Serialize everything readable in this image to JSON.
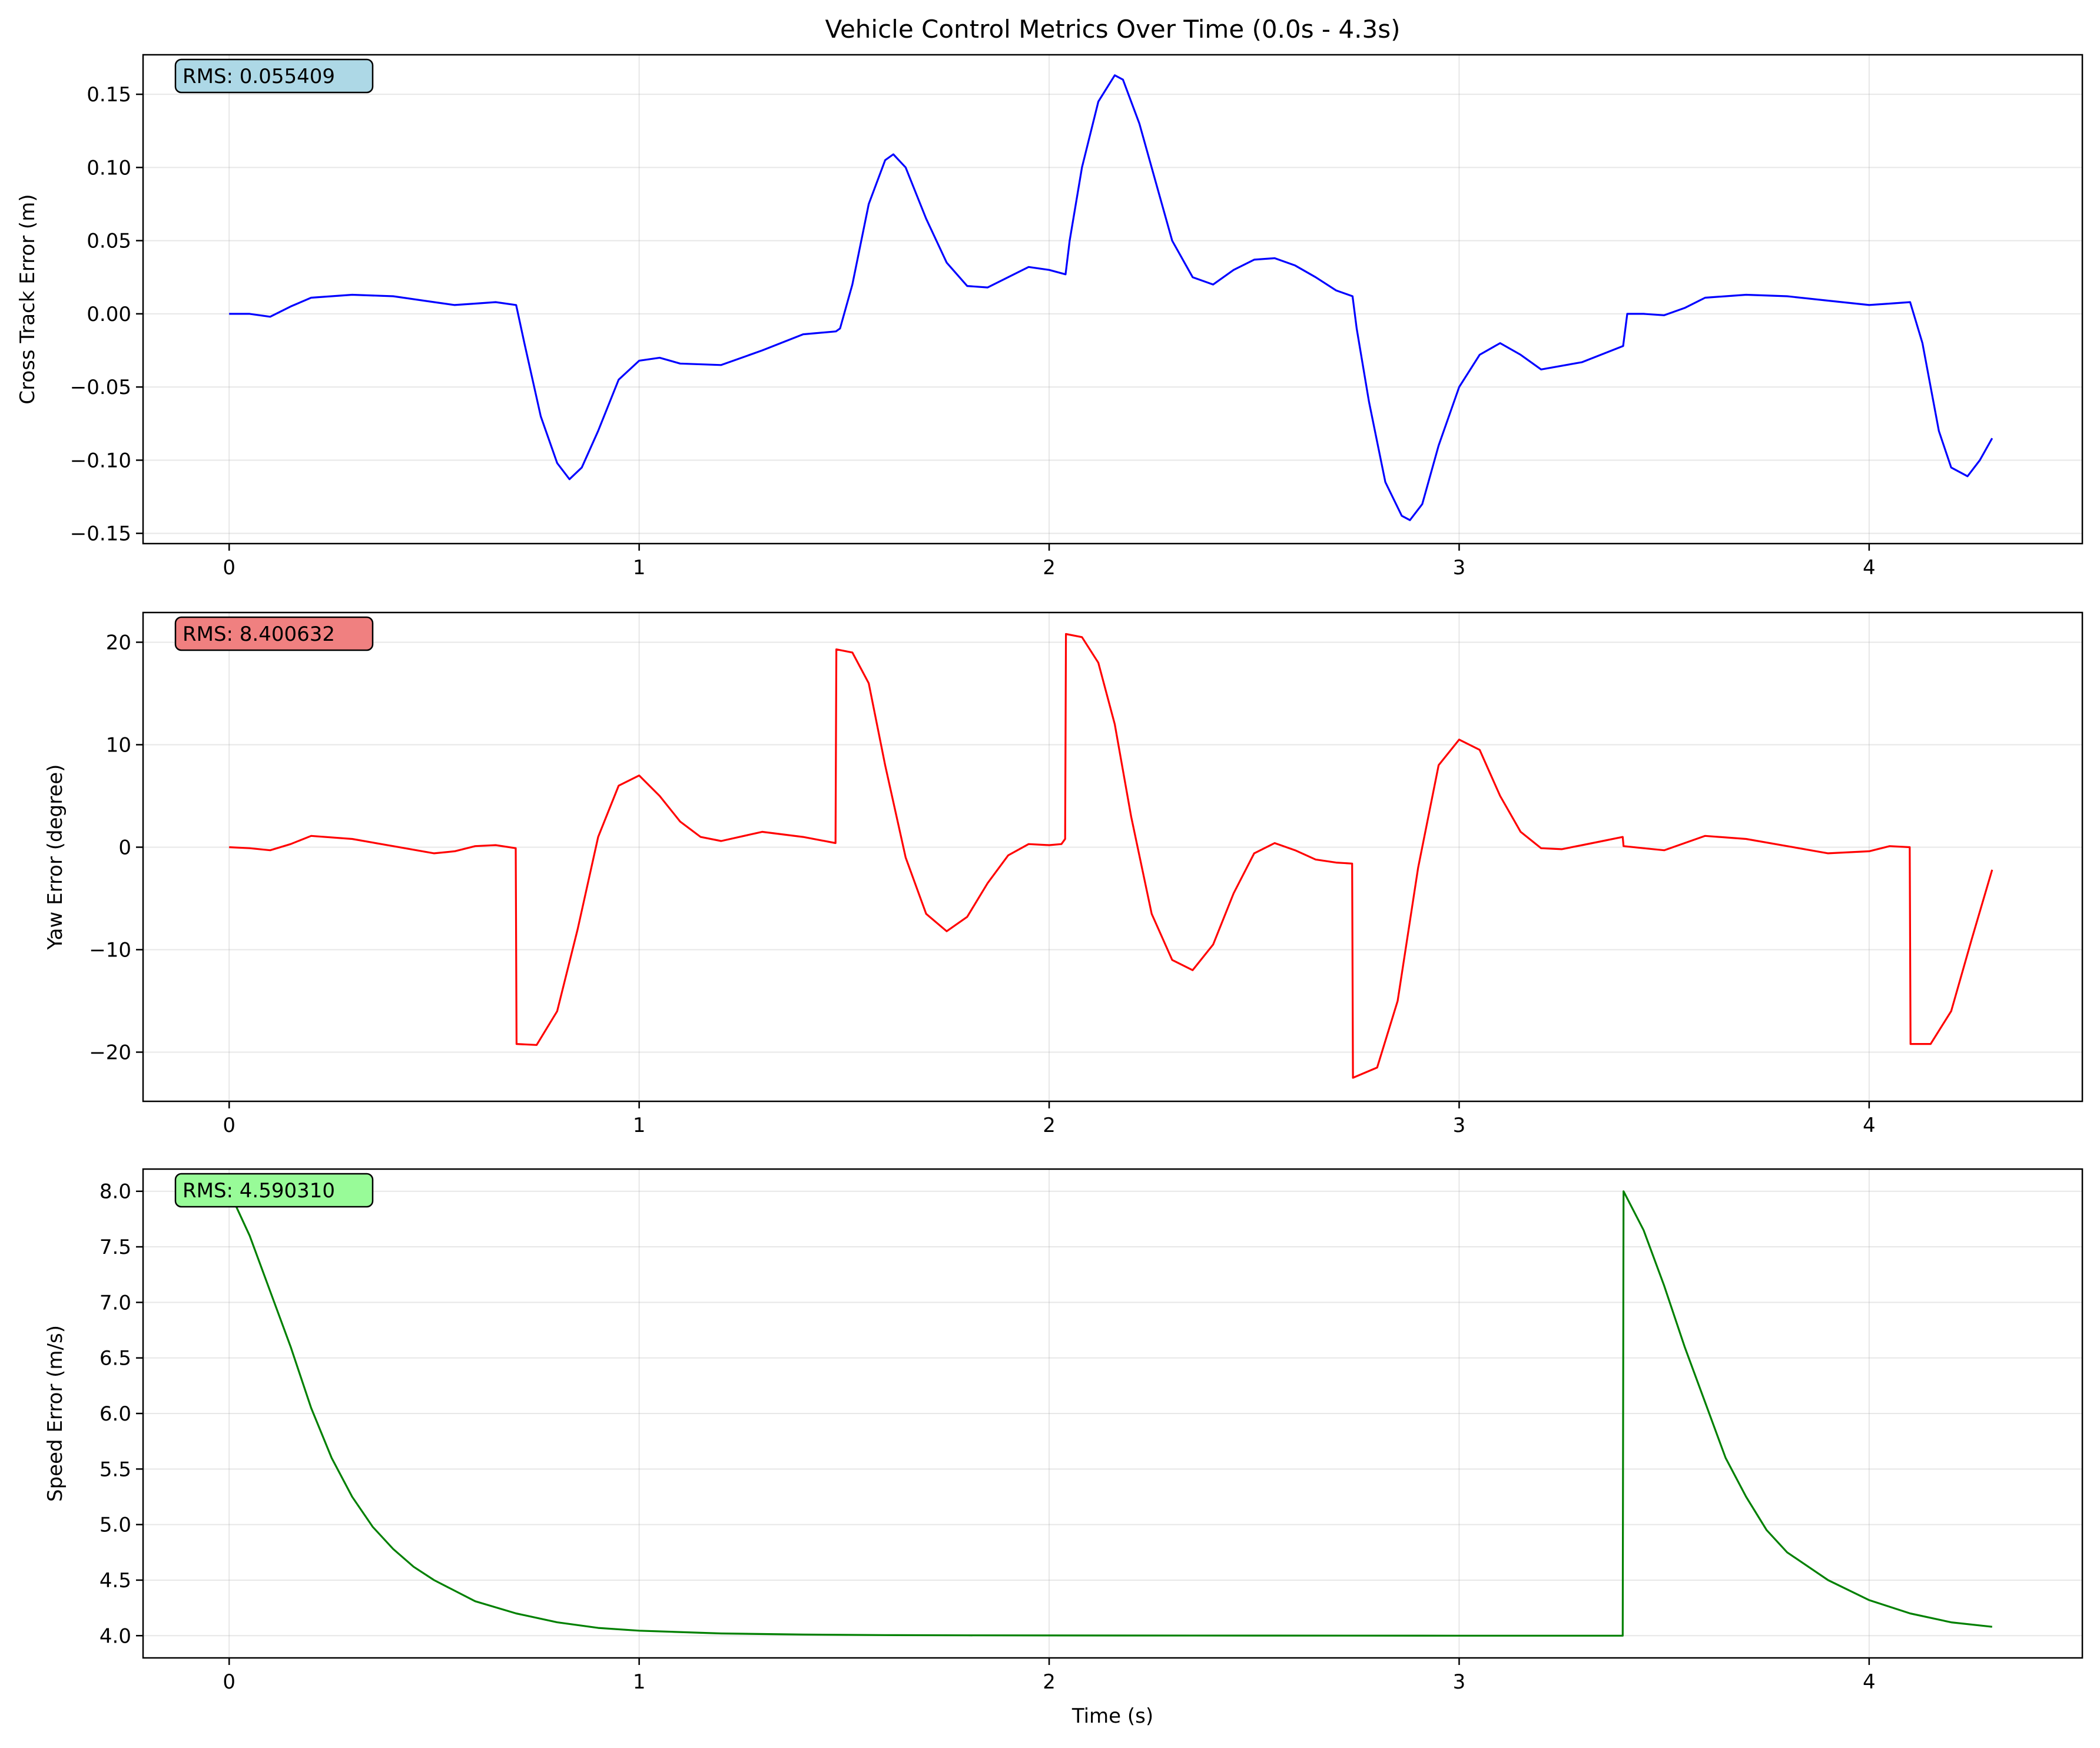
{
  "figure": {
    "title": "Vehicle Control Metrics Over Time (0.0s - 4.3s)"
  },
  "chart_data": [
    {
      "type": "line",
      "title": "Vehicle Control Metrics Over Time (0.0s - 4.3s)",
      "xlabel": "",
      "ylabel": "Cross Track Error (m)",
      "xlim": [
        -0.21,
        4.52
      ],
      "ylim": [
        -0.157,
        0.177
      ],
      "xticks": [
        0,
        1,
        2,
        3,
        4
      ],
      "xtick_labels": [
        "0",
        "1",
        "2",
        "3",
        "4"
      ],
      "yticks": [
        -0.15,
        -0.1,
        -0.05,
        0.0,
        0.05,
        0.1,
        0.15
      ],
      "ytick_labels": [
        "−0.15",
        "−0.10",
        "−0.05",
        "0.00",
        "0.05",
        "0.10",
        "0.15"
      ],
      "grid": true,
      "annotation": {
        "text": "RMS: 0.055409",
        "facecolor": "#add8e6",
        "position": "top-left"
      },
      "series": [
        {
          "color": "#0000ff",
          "x": [
            0.0,
            0.05,
            0.1,
            0.15,
            0.2,
            0.3,
            0.4,
            0.5,
            0.55,
            0.6,
            0.65,
            0.7,
            0.72,
            0.76,
            0.8,
            0.83,
            0.86,
            0.9,
            0.95,
            1.0,
            1.05,
            1.1,
            1.2,
            1.3,
            1.4,
            1.48,
            1.49,
            1.52,
            1.56,
            1.6,
            1.62,
            1.65,
            1.7,
            1.75,
            1.8,
            1.85,
            1.9,
            1.95,
            2.0,
            2.04,
            2.05,
            2.08,
            2.12,
            2.16,
            2.18,
            2.22,
            2.26,
            2.3,
            2.35,
            2.4,
            2.45,
            2.5,
            2.55,
            2.6,
            2.65,
            2.7,
            2.74,
            2.75,
            2.78,
            2.82,
            2.86,
            2.88,
            2.91,
            2.95,
            3.0,
            3.05,
            3.1,
            3.15,
            3.2,
            3.3,
            3.4,
            3.41,
            3.45,
            3.5,
            3.55,
            3.6,
            3.7,
            3.8,
            3.9,
            4.0,
            4.05,
            4.1,
            4.13,
            4.17,
            4.2,
            4.24,
            4.27,
            4.3
          ],
          "y": [
            0.0,
            0.0,
            -0.002,
            0.005,
            0.011,
            0.013,
            0.012,
            0.008,
            0.006,
            0.007,
            0.008,
            0.006,
            -0.02,
            -0.07,
            -0.102,
            -0.113,
            -0.105,
            -0.08,
            -0.045,
            -0.032,
            -0.03,
            -0.034,
            -0.035,
            -0.025,
            -0.014,
            -0.012,
            -0.01,
            0.02,
            0.075,
            0.105,
            0.109,
            0.1,
            0.065,
            0.035,
            0.019,
            0.018,
            0.025,
            0.032,
            0.03,
            0.027,
            0.05,
            0.1,
            0.145,
            0.163,
            0.16,
            0.13,
            0.09,
            0.05,
            0.025,
            0.02,
            0.03,
            0.037,
            0.038,
            0.033,
            0.025,
            0.016,
            0.012,
            -0.01,
            -0.06,
            -0.115,
            -0.138,
            -0.141,
            -0.13,
            -0.09,
            -0.05,
            -0.028,
            -0.02,
            -0.028,
            -0.038,
            -0.033,
            -0.022,
            0.0,
            0.0,
            -0.001,
            0.004,
            0.011,
            0.013,
            0.012,
            0.009,
            0.006,
            0.007,
            0.008,
            -0.02,
            -0.08,
            -0.105,
            -0.111,
            -0.1,
            -0.085
          ]
        }
      ]
    },
    {
      "type": "line",
      "xlabel": "",
      "ylabel": "Yaw Error (degree)",
      "xlim": [
        -0.21,
        4.52
      ],
      "ylim": [
        -24.8,
        22.9
      ],
      "xticks": [
        0,
        1,
        2,
        3,
        4
      ],
      "xtick_labels": [
        "0",
        "1",
        "2",
        "3",
        "4"
      ],
      "yticks": [
        -20,
        -10,
        0,
        10,
        20
      ],
      "ytick_labels": [
        "−20",
        "−10",
        "0",
        "10",
        "20"
      ],
      "grid": true,
      "annotation": {
        "text": "RMS: 8.400632",
        "facecolor": "#f08080",
        "position": "top-left"
      },
      "series": [
        {
          "color": "#ff0000",
          "x": [
            0.0,
            0.05,
            0.1,
            0.15,
            0.2,
            0.3,
            0.4,
            0.5,
            0.55,
            0.6,
            0.65,
            0.699,
            0.701,
            0.75,
            0.8,
            0.85,
            0.9,
            0.95,
            1.0,
            1.05,
            1.1,
            1.15,
            1.2,
            1.3,
            1.4,
            1.479,
            1.481,
            1.52,
            1.56,
            1.6,
            1.65,
            1.7,
            1.75,
            1.8,
            1.85,
            1.9,
            1.95,
            2.0,
            2.03,
            2.039,
            2.041,
            2.08,
            2.12,
            2.16,
            2.2,
            2.25,
            2.3,
            2.35,
            2.4,
            2.45,
            2.5,
            2.55,
            2.6,
            2.65,
            2.7,
            2.739,
            2.741,
            2.8,
            2.85,
            2.9,
            2.95,
            3.0,
            3.05,
            3.1,
            3.15,
            3.2,
            3.25,
            3.3,
            3.35,
            3.399,
            3.401,
            3.45,
            3.5,
            3.55,
            3.6,
            3.7,
            3.8,
            3.9,
            4.0,
            4.05,
            4.099,
            4.101,
            4.15,
            4.2,
            4.25,
            4.3
          ],
          "y": [
            0.0,
            -0.1,
            -0.3,
            0.3,
            1.1,
            0.8,
            0.1,
            -0.6,
            -0.4,
            0.1,
            0.2,
            -0.1,
            -19.2,
            -19.3,
            -16.0,
            -8.0,
            1.0,
            6.0,
            7.0,
            5.0,
            2.5,
            1.0,
            0.6,
            1.5,
            1.0,
            0.4,
            19.3,
            19.0,
            16.0,
            8.0,
            -1.0,
            -6.5,
            -8.2,
            -6.8,
            -3.5,
            -0.8,
            0.3,
            0.2,
            0.3,
            0.8,
            20.8,
            20.5,
            18.0,
            12.0,
            3.0,
            -6.5,
            -11.0,
            -12.0,
            -9.5,
            -4.5,
            -0.6,
            0.4,
            -0.3,
            -1.2,
            -1.5,
            -1.6,
            -22.5,
            -21.5,
            -15.0,
            -2.0,
            8.0,
            10.5,
            9.5,
            5.0,
            1.5,
            -0.1,
            -0.2,
            0.2,
            0.6,
            1.0,
            0.1,
            -0.1,
            -0.3,
            0.4,
            1.1,
            0.8,
            0.1,
            -0.6,
            -0.4,
            0.1,
            0.0,
            -19.2,
            -19.2,
            -16.0,
            -9.0,
            -2.2
          ]
        }
      ]
    },
    {
      "type": "line",
      "xlabel": "Time (s)",
      "ylabel": "Speed Error (m/s)",
      "xlim": [
        -0.21,
        4.52
      ],
      "ylim": [
        3.8,
        8.2
      ],
      "xticks": [
        0,
        1,
        2,
        3,
        4
      ],
      "xtick_labels": [
        "0",
        "1",
        "2",
        "3",
        "4"
      ],
      "yticks": [
        4.0,
        4.5,
        5.0,
        5.5,
        6.0,
        6.5,
        7.0,
        7.5,
        8.0
      ],
      "ytick_labels": [
        "4.0",
        "4.5",
        "5.0",
        "5.5",
        "6.0",
        "6.5",
        "7.0",
        "7.5",
        "8.0"
      ],
      "grid": true,
      "annotation": {
        "text": "RMS: 4.590310",
        "facecolor": "#98fb98",
        "position": "top-left"
      },
      "series": [
        {
          "color": "#008000",
          "x": [
            0.0,
            0.05,
            0.1,
            0.15,
            0.2,
            0.25,
            0.3,
            0.35,
            0.4,
            0.45,
            0.5,
            0.6,
            0.7,
            0.8,
            0.9,
            1.0,
            1.2,
            1.4,
            1.6,
            1.8,
            2.0,
            2.5,
            3.0,
            3.399,
            3.401,
            3.45,
            3.5,
            3.55,
            3.6,
            3.65,
            3.7,
            3.75,
            3.8,
            3.9,
            4.0,
            4.1,
            4.2,
            4.3
          ],
          "y": [
            8.0,
            7.6,
            7.1,
            6.6,
            6.05,
            5.6,
            5.25,
            4.98,
            4.78,
            4.62,
            4.5,
            4.31,
            4.2,
            4.12,
            4.07,
            4.045,
            4.02,
            4.01,
            4.005,
            4.003,
            4.002,
            4.001,
            4.0,
            4.0,
            8.0,
            7.65,
            7.15,
            6.6,
            6.1,
            5.6,
            5.25,
            4.95,
            4.75,
            4.5,
            4.32,
            4.2,
            4.12,
            4.08
          ]
        }
      ]
    }
  ]
}
